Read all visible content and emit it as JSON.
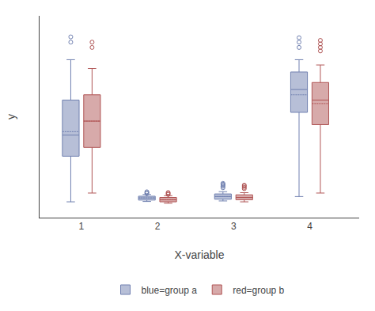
{
  "chart_data": {
    "type": "box",
    "xlabel": "X-variable",
    "ylabel": "y",
    "categories": [
      "1",
      "2",
      "3",
      "4"
    ],
    "ylim": [
      -0.5,
      11.0
    ],
    "tick_labels": "x",
    "grid": false,
    "legend": "bottom",
    "series": [
      {
        "name": "blue=group a",
        "color": "#7080b0",
        "q1": [
          3.0,
          0.5,
          0.55,
          5.5
        ],
        "median": [
          4.2,
          0.62,
          0.7,
          6.8
        ],
        "q3": [
          6.2,
          0.72,
          0.85,
          7.8
        ],
        "whislo": [
          0.4,
          0.42,
          0.45,
          0.7
        ],
        "whishi": [
          8.5,
          0.82,
          0.98,
          8.5
        ],
        "mean": [
          4.4,
          0.62,
          0.7,
          6.5
        ],
        "fliers": [
          [
            9.5,
            9.8
          ],
          [
            0.88,
            0.92,
            0.97
          ],
          [
            1.2,
            1.28,
            1.35,
            1.4,
            1.45
          ],
          [
            9.2,
            9.5,
            9.75
          ]
        ]
      },
      {
        "name": "red=group b",
        "color": "#b05555",
        "q1": [
          3.5,
          0.4,
          0.52,
          4.8
        ],
        "median": [
          5.0,
          0.52,
          0.65,
          6.2
        ],
        "q3": [
          6.5,
          0.65,
          0.8,
          7.2
        ],
        "whislo": [
          0.9,
          0.32,
          0.4,
          0.9
        ],
        "whishi": [
          8.0,
          0.75,
          0.92,
          8.2
        ],
        "mean": [
          5.0,
          0.52,
          0.65,
          6.0
        ],
        "fliers": [
          [
            9.2,
            9.5
          ],
          [
            0.82,
            0.88,
            0.93
          ],
          [
            1.15,
            1.22,
            1.3,
            1.35
          ],
          [
            9.0,
            9.2,
            9.4,
            9.6
          ]
        ]
      }
    ]
  }
}
